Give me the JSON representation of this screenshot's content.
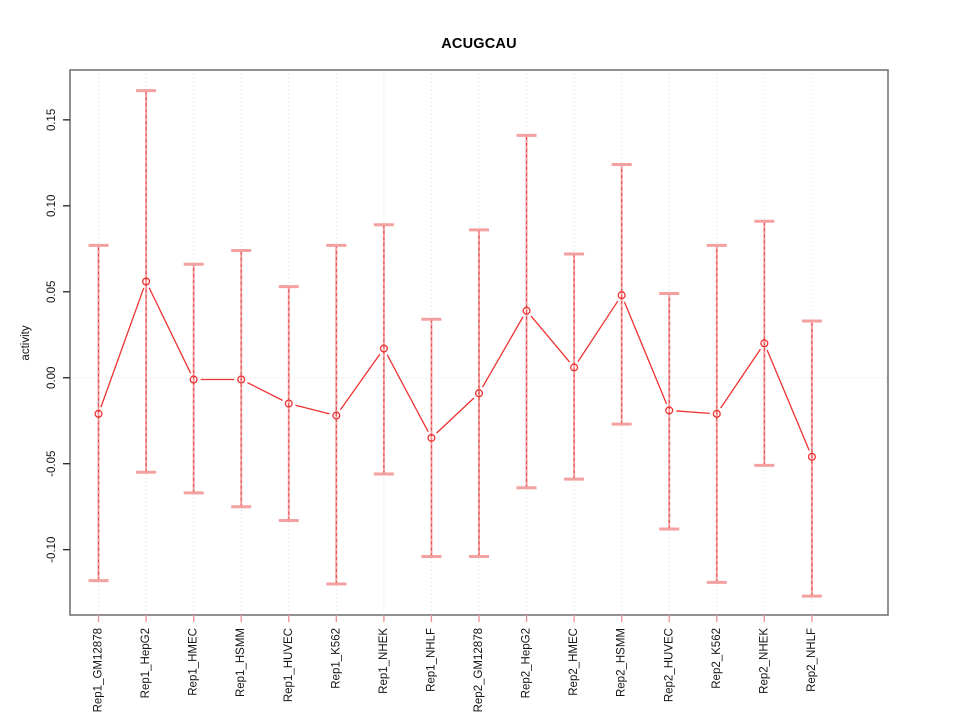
{
  "figure": {
    "title": "ACUGCAU",
    "ylabel": "activity"
  },
  "chart_data": {
    "type": "line",
    "title": "ACUGCAU",
    "xlabel": "",
    "ylabel": "activity",
    "legend": "none",
    "grid": "dotted vertical gridline at each category; dotted horizontal line at y=0",
    "categories": [
      "Rep1_GM12878",
      "Rep1_HepG2",
      "Rep1_HMEC",
      "Rep1_HSMM",
      "Rep1_HUVEC",
      "Rep1_K562",
      "Rep1_NHEK",
      "Rep1_NHLF",
      "Rep2_GM12878",
      "Rep2_HepG2",
      "Rep2_HMEC",
      "Rep2_HSMM",
      "Rep2_HUVEC",
      "Rep2_K562",
      "Rep2_NHEK",
      "Rep2_NHLF"
    ],
    "series": [
      {
        "name": "activity",
        "marker": "open-circle",
        "values": [
          -0.021,
          0.056,
          -0.001,
          -0.001,
          -0.015,
          -0.022,
          0.017,
          -0.035,
          -0.009,
          0.039,
          0.006,
          0.048,
          -0.019,
          -0.021,
          0.02,
          -0.046
        ],
        "error_high": [
          0.077,
          0.167,
          0.066,
          0.074,
          0.053,
          0.077,
          0.089,
          0.034,
          0.086,
          0.141,
          0.072,
          0.124,
          0.049,
          0.077,
          0.091,
          0.033
        ],
        "error_low": [
          -0.118,
          -0.055,
          -0.067,
          -0.075,
          -0.083,
          -0.12,
          -0.056,
          -0.104,
          -0.104,
          -0.064,
          -0.059,
          -0.027,
          -0.088,
          -0.119,
          -0.051,
          -0.127
        ]
      }
    ],
    "yticks": [
      -0.1,
      -0.05,
      0.0,
      0.05,
      0.1,
      0.15
    ],
    "ytick_labels": [
      "-0.10",
      "-0.05",
      "0.00",
      "0.05",
      "0.10",
      "0.15"
    ],
    "ylim": [
      -0.138,
      0.179
    ],
    "colors": {
      "point_line": "#ee3232",
      "error_bar": "#f5a0a0",
      "error_bar_dash": "#e04848",
      "grid": "#d7d7d7",
      "box": "#757575",
      "tick_y": "#222222",
      "tick_x": "#ee9090",
      "text": "#141414"
    }
  }
}
